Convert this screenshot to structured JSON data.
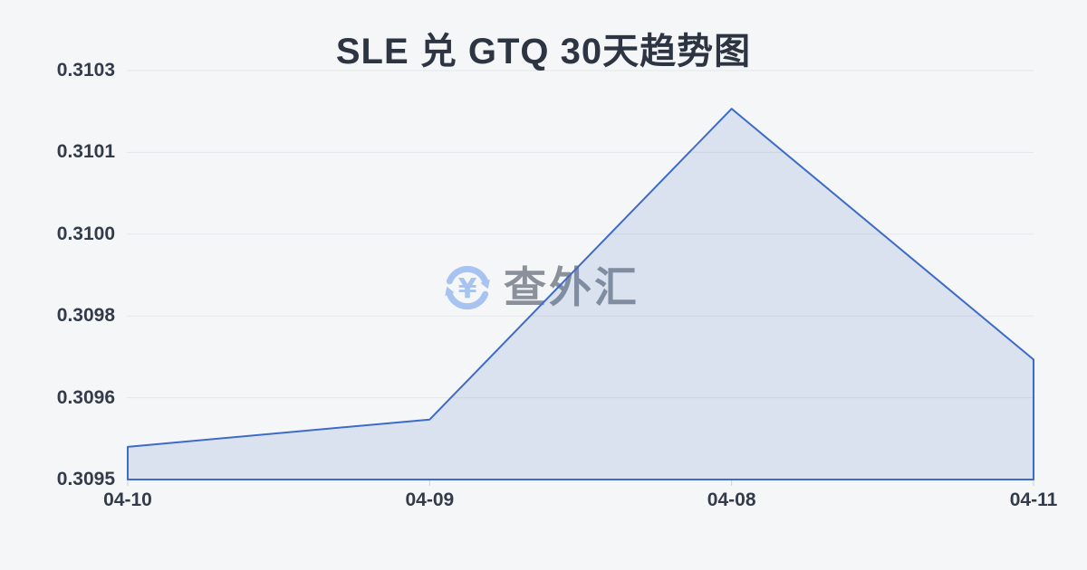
{
  "chart_data": {
    "type": "area",
    "title": "SLE 兑 GTQ 30天趋势图",
    "categories": [
      "04-10",
      "04-09",
      "04-08",
      "04-11"
    ],
    "values": [
      0.30956,
      0.30961,
      0.31018,
      0.30972
    ],
    "ylim": [
      0.3095,
      0.31025
    ],
    "y_tick_labels_top_to_bottom": [
      "0.3103",
      "0.3101",
      "0.3100",
      "0.3098",
      "0.3096",
      "0.3095"
    ],
    "xlabel": "",
    "ylabel": "",
    "grid": true,
    "legend": "none",
    "colors": {
      "background": "#f5f6f8",
      "title_text": "#2d3543",
      "axis_text": "#333b4a",
      "grid": "#e3e5e9",
      "tick": "#ccd0d6",
      "line": "#3e6bc7",
      "fill": "rgba(68,114,196,0.15)"
    },
    "watermark": {
      "text": "查外汇",
      "icon": "currency-exchange-icon",
      "icon_symbol": "¥",
      "icon_color": "#a7c3f1",
      "text_color": "#8b919b"
    }
  }
}
